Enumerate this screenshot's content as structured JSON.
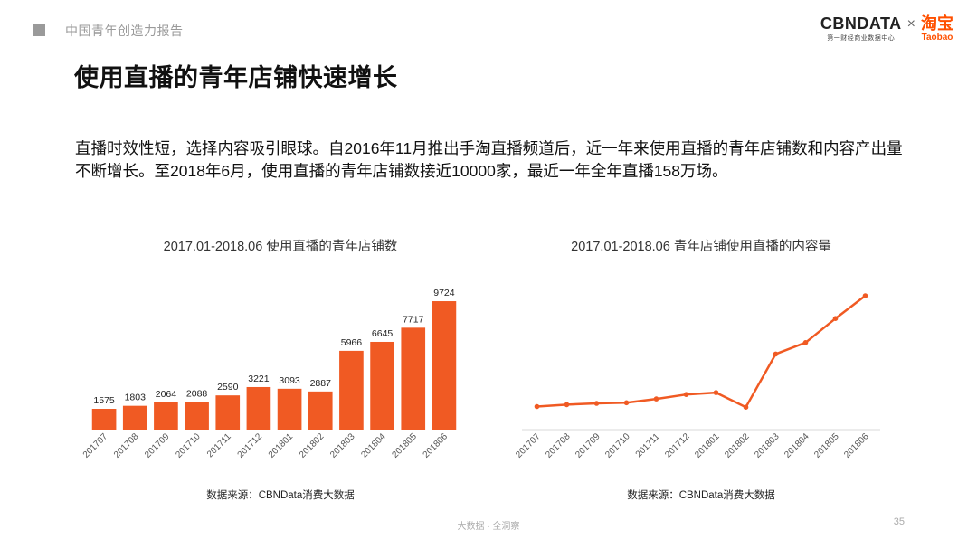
{
  "header": {
    "section_title": "中国青年创造力报告",
    "brand_cbn": "CBNDATA",
    "brand_cbn_sub": "第一财经商业数据中心",
    "brand_x": "×",
    "brand_taobao_cn": "淘宝",
    "brand_taobao_en": "Taobao"
  },
  "page_title": "使用直播的青年店铺快速增长",
  "intro": "直播时效性短，选择内容吸引眼球。自2016年11月推出手淘直播频道后，近一年来使用直播的青年店铺数和内容产出量不断增长。至2018年6月，使用直播的青年店铺数接近10000家，最近一年全年直播158万场。",
  "chart_data": [
    {
      "type": "bar",
      "title": "2017.01-2018.06 使用直播的青年店铺数",
      "categories": [
        "201707",
        "201708",
        "201709",
        "201710",
        "201711",
        "201712",
        "201801",
        "201802",
        "201803",
        "201804",
        "201805",
        "201806"
      ],
      "values": [
        1575,
        1803,
        2064,
        2088,
        2590,
        3221,
        3093,
        2887,
        5966,
        6645,
        7717,
        9724
      ],
      "color": "#f05a23",
      "ylim": [
        0,
        10000
      ],
      "data_labels": true,
      "grid": false,
      "source": "数据来源：CBNData消费大数据"
    },
    {
      "type": "line",
      "title": "2017.01-2018.06 青年店铺使用直播的内容量",
      "categories": [
        "201707",
        "201708",
        "201709",
        "201710",
        "201711",
        "201712",
        "201801",
        "201802",
        "201803",
        "201804",
        "201805",
        "201806"
      ],
      "values": [
        0.5,
        0.8,
        1.0,
        1.1,
        1.7,
        2.4,
        2.7,
        0.4,
        8.8,
        10.6,
        14.4,
        18.0
      ],
      "color": "#f05a23",
      "ylim": [
        0,
        20
      ],
      "data_labels": false,
      "grid": false,
      "source": "数据来源：CBNData消费大数据"
    }
  ],
  "footer": {
    "text": "大数据 · 全洞察",
    "page_number": "35"
  }
}
